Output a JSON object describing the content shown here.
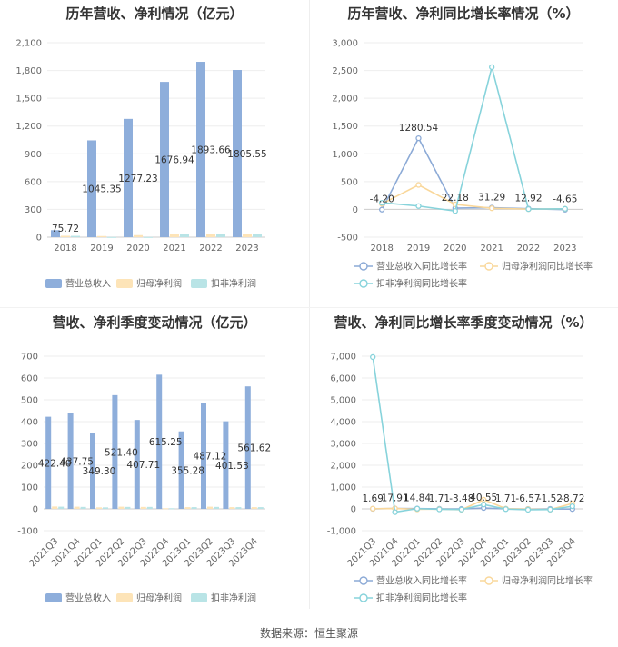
{
  "source": "数据来源：恒生聚源",
  "colors": {
    "revenue": "#8eaedb",
    "net_profit": "#fde4b8",
    "deducted": "#b9e4e6",
    "revenue_line": "#8caad6",
    "net_line": "#f9d79a",
    "deducted_line": "#87d3db"
  },
  "chart_data": [
    {
      "title": "历年营收、净利情况（亿元）",
      "type": "bar",
      "categories": [
        "2018",
        "2019",
        "2020",
        "2021",
        "2022",
        "2023"
      ],
      "ylim": [
        0,
        2100
      ],
      "yticks": [
        "0",
        "300",
        "600",
        "900",
        "1,200",
        "1,500",
        "1,800",
        "2,100"
      ],
      "series": [
        {
          "name": "营业总收入",
          "values": [
            75.72,
            1045.35,
            1277.23,
            1676.94,
            1893.66,
            1805.55
          ],
          "labels": [
            "75.72",
            "1045.35",
            "1277.23",
            "1676.94",
            "1893.66",
            "1805.55"
          ]
        },
        {
          "name": "归母净利润",
          "values": [
            15,
            12,
            22,
            30,
            32,
            35
          ]
        },
        {
          "name": "扣非净利润",
          "values": [
            14,
            2,
            2,
            30,
            32,
            35
          ]
        }
      ],
      "legend": "bottom"
    },
    {
      "title": "历年营收、净利同比增长率情况（%）",
      "type": "line",
      "categories": [
        "2018",
        "2019",
        "2020",
        "2021",
        "2022",
        "2023"
      ],
      "ylim": [
        -500,
        3000
      ],
      "yticks": [
        "-500",
        "0",
        "500",
        "1,000",
        "1,500",
        "2,000",
        "2,500",
        "3,000"
      ],
      "series": [
        {
          "name": "营业总收入同比增长率",
          "values": [
            -4.2,
            1280.54,
            22.18,
            31.29,
            12.92,
            -4.65
          ],
          "labels": [
            "-4.20",
            "1280.54",
            "22.18",
            "31.29",
            "12.92",
            "-4.65"
          ]
        },
        {
          "name": "归母净利润同比增长率",
          "values": [
            100,
            440,
            90,
            20,
            5,
            10
          ]
        },
        {
          "name": "扣非净利润同比增长率",
          "values": [
            120,
            60,
            -30,
            2560,
            5,
            10
          ]
        }
      ],
      "legend": "bottom"
    },
    {
      "title": "营收、净利季度变动情况（亿元）",
      "type": "bar",
      "categories": [
        "2021Q3",
        "2021Q4",
        "2022Q1",
        "2022Q2",
        "2022Q3",
        "2022Q4",
        "2023Q1",
        "2023Q2",
        "2023Q3",
        "2023Q4"
      ],
      "ylim": [
        -100,
        700
      ],
      "yticks": [
        "-100",
        "0",
        "100",
        "200",
        "300",
        "400",
        "500",
        "600",
        "700"
      ],
      "series": [
        {
          "name": "营业总收入",
          "values": [
            422.4,
            437.75,
            349.3,
            521.4,
            407.71,
            615.25,
            355.28,
            487.12,
            401.53,
            561.62
          ],
          "labels": [
            "422.40",
            "437.75",
            "349.30",
            "521.40",
            "407.71",
            "615.25",
            "355.28",
            "487.12",
            "401.53",
            "561.62"
          ]
        },
        {
          "name": "归母净利润",
          "values": [
            11,
            10,
            7,
            10,
            9,
            3,
            8,
            10,
            8,
            8
          ]
        },
        {
          "name": "扣非净利润",
          "values": [
            10,
            9,
            7,
            9,
            9,
            3,
            8,
            9,
            8,
            8
          ]
        }
      ],
      "legend": "bottom"
    },
    {
      "title": "营收、净利同比增长率季度变动情况（%）",
      "type": "line",
      "categories": [
        "2021Q3",
        "2021Q4",
        "2022Q1",
        "2022Q2",
        "2022Q3",
        "2022Q4",
        "2023Q1",
        "2023Q2",
        "2023Q3",
        "2023Q4"
      ],
      "ylim": [
        -1000,
        7000
      ],
      "yticks": [
        "-1,000",
        "0",
        "1,000",
        "2,000",
        "3,000",
        "4,000",
        "5,000",
        "6,000",
        "7,000"
      ],
      "series": [
        {
          "name": "营业总收入同比增长率",
          "values": [
            1.69,
            17.91,
            14.84,
            1.71,
            -3.48,
            40.55,
            1.71,
            -6.57,
            -1.52,
            -8.72
          ],
          "labels": [
            "1.69",
            "17.91",
            "14.84",
            "1.71",
            "-3.48",
            "40.55",
            "1.71",
            "-6.57",
            "-1.52",
            "-8.72"
          ]
        },
        {
          "name": "归母净利润同比增长率",
          "values": [
            10,
            20,
            -20,
            -10,
            -40,
            420,
            10,
            -10,
            -30,
            250
          ]
        },
        {
          "name": "扣非净利润同比增长率",
          "values": [
            6960,
            -150,
            10,
            -20,
            -30,
            200,
            -10,
            -40,
            -30,
            120
          ]
        }
      ],
      "legend": "bottom"
    }
  ]
}
